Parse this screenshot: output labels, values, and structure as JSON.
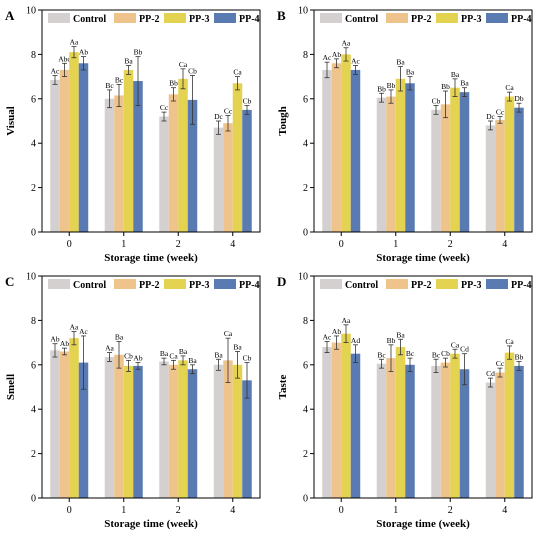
{
  "legend": [
    "Control",
    "PP-2",
    "PP-3",
    "PP-4"
  ],
  "colors": [
    "#d4d0d0",
    "#eec48c",
    "#e4d350",
    "#5a7ab2"
  ],
  "chart_data": [
    {
      "panel": "A",
      "type": "bar",
      "xlabel": "Storage time (week)",
      "ylabel": "Visual",
      "ylim": [
        0,
        10
      ],
      "yticks": [
        "0",
        "2",
        "4",
        "6",
        "8",
        "10"
      ],
      "categories": [
        "0",
        "1",
        "2",
        "4"
      ],
      "series": [
        {
          "name": "Control",
          "values": [
            6.85,
            6.0,
            5.2,
            4.7
          ],
          "errors": [
            0.2,
            0.4,
            0.2,
            0.3
          ],
          "labels": [
            "Ac",
            "Bc",
            "Cc",
            "Dc"
          ]
        },
        {
          "name": "PP-2",
          "values": [
            7.3,
            6.15,
            6.2,
            4.9
          ],
          "errors": [
            0.3,
            0.5,
            0.3,
            0.35
          ],
          "labels": [
            "Abc",
            "Bc",
            "Bb",
            "Cc"
          ]
        },
        {
          "name": "PP-3",
          "values": [
            8.1,
            7.3,
            6.9,
            6.7
          ],
          "errors": [
            0.25,
            0.2,
            0.45,
            0.3
          ],
          "labels": [
            "Aa",
            "Ba",
            "Ca",
            "Ca"
          ]
        },
        {
          "name": "PP-4",
          "values": [
            7.6,
            6.8,
            5.95,
            5.5
          ],
          "errors": [
            0.3,
            1.1,
            1.1,
            0.2
          ],
          "labels": [
            "Ab",
            "Bb",
            "Cb",
            "Cb"
          ]
        }
      ]
    },
    {
      "panel": "B",
      "type": "bar",
      "xlabel": "Storage time (week)",
      "ylabel": "Tough",
      "ylim": [
        0,
        10
      ],
      "yticks": [
        "0",
        "2",
        "4",
        "6",
        "8",
        "10"
      ],
      "categories": [
        "0",
        "1",
        "2",
        "4"
      ],
      "series": [
        {
          "name": "Control",
          "values": [
            7.3,
            6.05,
            5.5,
            4.8
          ],
          "errors": [
            0.35,
            0.2,
            0.2,
            0.2
          ],
          "labels": [
            "Ac",
            "Bb",
            "Cb",
            "Dc"
          ]
        },
        {
          "name": "PP-2",
          "values": [
            7.6,
            6.1,
            5.75,
            5.05
          ],
          "errors": [
            0.2,
            0.3,
            0.6,
            0.15
          ],
          "labels": [
            "Ab",
            "Bb",
            "Bb",
            "Cc"
          ]
        },
        {
          "name": "PP-3",
          "values": [
            8.0,
            6.9,
            6.5,
            6.1
          ],
          "errors": [
            0.3,
            0.55,
            0.4,
            0.2
          ],
          "labels": [
            "Aa",
            "Ba",
            "Ba",
            "Ca"
          ]
        },
        {
          "name": "PP-4",
          "values": [
            7.3,
            6.7,
            6.3,
            5.6
          ],
          "errors": [
            0.2,
            0.3,
            0.2,
            0.2
          ],
          "labels": [
            "Ac",
            "Ba",
            "Ba",
            "Db"
          ]
        }
      ]
    },
    {
      "panel": "C",
      "type": "bar",
      "xlabel": "Storage time (week)",
      "ylabel": "Smell",
      "ylim": [
        0,
        10
      ],
      "yticks": [
        "0",
        "2",
        "4",
        "6",
        "8",
        "10"
      ],
      "categories": [
        "0",
        "1",
        "2",
        "4"
      ],
      "series": [
        {
          "name": "Control",
          "values": [
            6.65,
            6.35,
            6.15,
            6.0
          ],
          "errors": [
            0.3,
            0.2,
            0.15,
            0.25
          ],
          "labels": [
            "Ab",
            "Aa",
            "Ba",
            "Ba"
          ]
        },
        {
          "name": "PP-2",
          "values": [
            6.6,
            6.45,
            6.0,
            6.2
          ],
          "errors": [
            0.15,
            0.6,
            0.2,
            1.0
          ],
          "labels": [
            "Ab",
            "Ba",
            "Ca",
            "Ca"
          ]
        },
        {
          "name": "PP-3",
          "values": [
            7.2,
            5.95,
            6.2,
            6.0
          ],
          "errors": [
            0.3,
            0.25,
            0.2,
            0.6
          ],
          "labels": [
            "Aa",
            "Cb",
            "Ba",
            "Ba"
          ]
        },
        {
          "name": "PP-4",
          "values": [
            6.1,
            5.95,
            5.8,
            5.3
          ],
          "errors": [
            1.2,
            0.15,
            0.2,
            0.8
          ],
          "labels": [
            "Ac",
            "Ab",
            "Ba",
            "Cb"
          ]
        }
      ]
    },
    {
      "panel": "D",
      "type": "bar",
      "xlabel": "Storage time (week)",
      "ylabel": "Taste",
      "ylim": [
        0,
        10
      ],
      "yticks": [
        "0",
        "2",
        "4",
        "6",
        "8",
        "10"
      ],
      "categories": [
        "0",
        "1",
        "2",
        "4"
      ],
      "series": [
        {
          "name": "Control",
          "values": [
            6.8,
            6.05,
            5.95,
            5.2
          ],
          "errors": [
            0.25,
            0.2,
            0.3,
            0.2
          ],
          "labels": [
            "Ac",
            "Bc",
            "Bc",
            "Cd"
          ]
        },
        {
          "name": "PP-2",
          "values": [
            7.0,
            6.3,
            6.1,
            5.65
          ],
          "errors": [
            0.3,
            0.6,
            0.2,
            0.2
          ],
          "labels": [
            "Ab",
            "Bb",
            "Cb",
            "Cc"
          ]
        },
        {
          "name": "PP-3",
          "values": [
            7.4,
            6.8,
            6.5,
            6.55
          ],
          "errors": [
            0.4,
            0.35,
            0.2,
            0.3
          ],
          "labels": [
            "Aa",
            "Ba",
            "Ca",
            "Ca"
          ]
        },
        {
          "name": "PP-4",
          "values": [
            6.5,
            6.0,
            5.8,
            5.95
          ],
          "errors": [
            0.4,
            0.3,
            0.7,
            0.2
          ],
          "labels": [
            "Ad",
            "Bc",
            "Cd",
            "Bb"
          ]
        }
      ]
    }
  ]
}
